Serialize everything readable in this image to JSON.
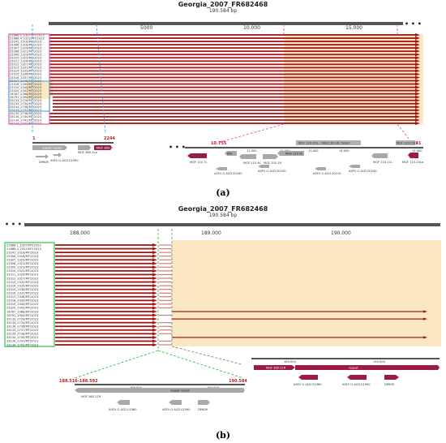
{
  "panel_a": {
    "title": "Georgia_2007_FR682468",
    "subtitle": "190.584 bp",
    "caption": "(a)",
    "ruler_ticks": [
      "5000",
      "10.000",
      "15.000"
    ],
    "ellipsis": "• • •",
    "isolates": [
      "21886.1_2307/MT/2023",
      "21886.4_2312/MT/2023",
      "23241_2316/MT/2023",
      "23306_2318/MT/2023",
      "23307_2329/MT/2023",
      "23308_2321/MT/2023",
      "23309_2323/MT/2023",
      "23310_2325/MT/2023",
      "23311_2326/MT/2023",
      "23312_2327/MT/2023",
      "23313_2331/MT/2023",
      "23314_2335/MT/2023",
      "23315_2336/MT/2023",
      "23316_2337/MT/2023",
      "23317_2338/MT/2023",
      "23318_2339/MT/2023",
      "23319_2340/MT/2023",
      "23320_2342/MT/2023",
      "16787_2388/MT/2024",
      "16791_2394/MT/2023",
      "33133_2726/MT/2023",
      "33133_2734/MT/2023",
      "33134_2736/MT/2023",
      "33133_2737/MT/2023",
      "33133_2738/MT/2023",
      "33134_2740/MT/2023",
      "33134_2741/MT/2023",
      "33134_2742/MT/2023"
    ],
    "left_marks": [
      "1",
      "2244"
    ],
    "right_marks": [
      "10.755",
      "15.591"
    ],
    "left_zoom": {
      "features": [
        {
          "label": "repeat region",
          "color": "#a8a8a8"
        },
        {
          "label": "MGF 360-1La",
          "color": "#a8a8a8"
        },
        {
          "label": "MGF 360-1Lb",
          "color": "#9b1b4a"
        }
      ],
      "sub": [
        "DP60R",
        "ASFV G ACD 01990"
      ]
    },
    "right_zoom": {
      "banner": "MGF 110-10-L - MGF110-14L fusion",
      "features": [
        "MGF 110-7L",
        "BRL",
        "MGF 110-9L",
        "MGF 100-1R",
        "MGF 110-9L",
        "MGF 110-11L",
        "MGF 110-13La"
      ],
      "sub": [
        "ASFV G ACD 00160",
        "ASFV G ACD 00190",
        "ASFV G ACD 00210",
        "ASFV G ACD 00240"
      ],
      "ticks": [
        "11.000",
        "12.000",
        "13.000",
        "14.000",
        "15.000"
      ]
    }
  },
  "panel_b": {
    "title": "Georgia_2007_FR682468",
    "subtitle": "190.584 bp",
    "caption": "(b)",
    "ruler_ticks": [
      "188.000",
      "189.000",
      "190.000"
    ],
    "ellipsis": "• • •",
    "isolates": [
      "21886.1_2307/MT/2023",
      "21886.4_2312/MT/2023",
      "23241_2316/MT/2023",
      "23306_2318/MT/2023",
      "23307_2329/MT/2023",
      "23308_2321/MT/2023",
      "23309_2323/MT/2023",
      "23310_2325/MT/2023",
      "23311_2326/MT/2023",
      "23312_2327/MT/2023",
      "23313_2331/MT/2023",
      "23314_2335/MT/2023",
      "23315_2336/MT/2023",
      "23316_2337/MT/2023",
      "23317_2338/MT/2023",
      "23318_2339/MT/2023",
      "23319_2340/MT/2023",
      "23320_2342/MT/2023",
      "16787_2388/MT/2024",
      "16791_2394/MT/2023",
      "33133_2726/MT/2023",
      "33133_2734/MT/2023",
      "33134_2736/MT/2023",
      "33133_2737/MT/2023",
      "33133_2738/MT/2023",
      "33134_2740/MT/2023",
      "33134_2741/MT/2023",
      "33134_2742/MT/2023"
    ],
    "left_marks": [
      "188.516-188.592",
      "190.584"
    ],
    "left_zoom": {
      "ticks": [
        "189.000",
        "190.000"
      ],
      "features": [
        "MGF 360-21R",
        "repeat region"
      ],
      "sub": [
        "ASFV G ACD 01980",
        "ASFV G ACD 01990",
        "DP60R"
      ]
    },
    "right_zoom": {
      "ticks": [
        "189.000",
        "190.000"
      ],
      "features": [
        "MGF 360-21R",
        "repeat"
      ],
      "sub": [
        "ASFV G ACD 01980",
        "ASFV G ACD 01990",
        "DP60R"
      ]
    }
  },
  "colors": {
    "read": "#a31515",
    "highlight": "#fbe7c1",
    "magenta": "#d95fb0",
    "blue": "#3aa0e0",
    "green": "#2ec24a",
    "gene_dark": "#9b1b4a",
    "gene_grey": "#a8a8a8"
  }
}
